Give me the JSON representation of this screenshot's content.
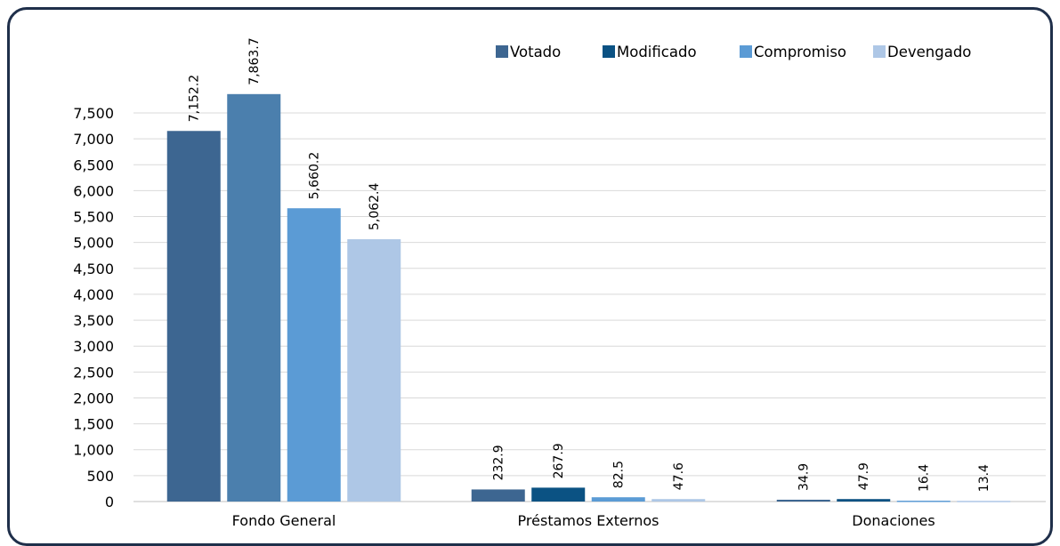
{
  "chart_data": {
    "type": "bar",
    "title": "",
    "xlabel": "",
    "ylabel": "",
    "categories": [
      "Fondo General",
      "Préstamos Externos",
      "Donaciones"
    ],
    "series": [
      {
        "name": "Votado",
        "color": "#3d6691",
        "values": [
          7152.2,
          232.9,
          34.9
        ],
        "labels": [
          "7,152.2",
          "232.9",
          "34.9"
        ]
      },
      {
        "name": "Modificado",
        "color": "#4b7fad",
        "values": [
          7863.7,
          267.9,
          47.9
        ],
        "labels": [
          "7,863.7",
          "267.9",
          "47.9"
        ],
        "colors": [
          "#4b7fad",
          "#0b5283",
          "#0b5283"
        ]
      },
      {
        "name": "Compromiso",
        "color": "#5b9bd5",
        "values": [
          5660.2,
          82.5,
          16.4
        ],
        "labels": [
          "5,660.2",
          "82.5",
          "16.4"
        ]
      },
      {
        "name": "Devengado",
        "color": "#aec7e6",
        "values": [
          5062.4,
          47.6,
          13.4
        ],
        "labels": [
          "5,062.4",
          "47.6",
          "13.4"
        ]
      }
    ],
    "legend_colors": [
      "#3d6691",
      "#0b5283",
      "#5b9bd5",
      "#aec7e6"
    ],
    "ylim": [
      0,
      7500
    ],
    "yticks": [
      "0",
      "500",
      "1,000",
      "1,500",
      "2,000",
      "2,500",
      "3,000",
      "3,500",
      "4,000",
      "4,500",
      "5,000",
      "5,500",
      "6,000",
      "6,500",
      "7,000",
      "7,500"
    ],
    "ytick_values": [
      0,
      500,
      1000,
      1500,
      2000,
      2500,
      3000,
      3500,
      4000,
      4500,
      5000,
      5500,
      6000,
      6500,
      7000,
      7500
    ],
    "grid": true,
    "legend_position": "top-right"
  }
}
